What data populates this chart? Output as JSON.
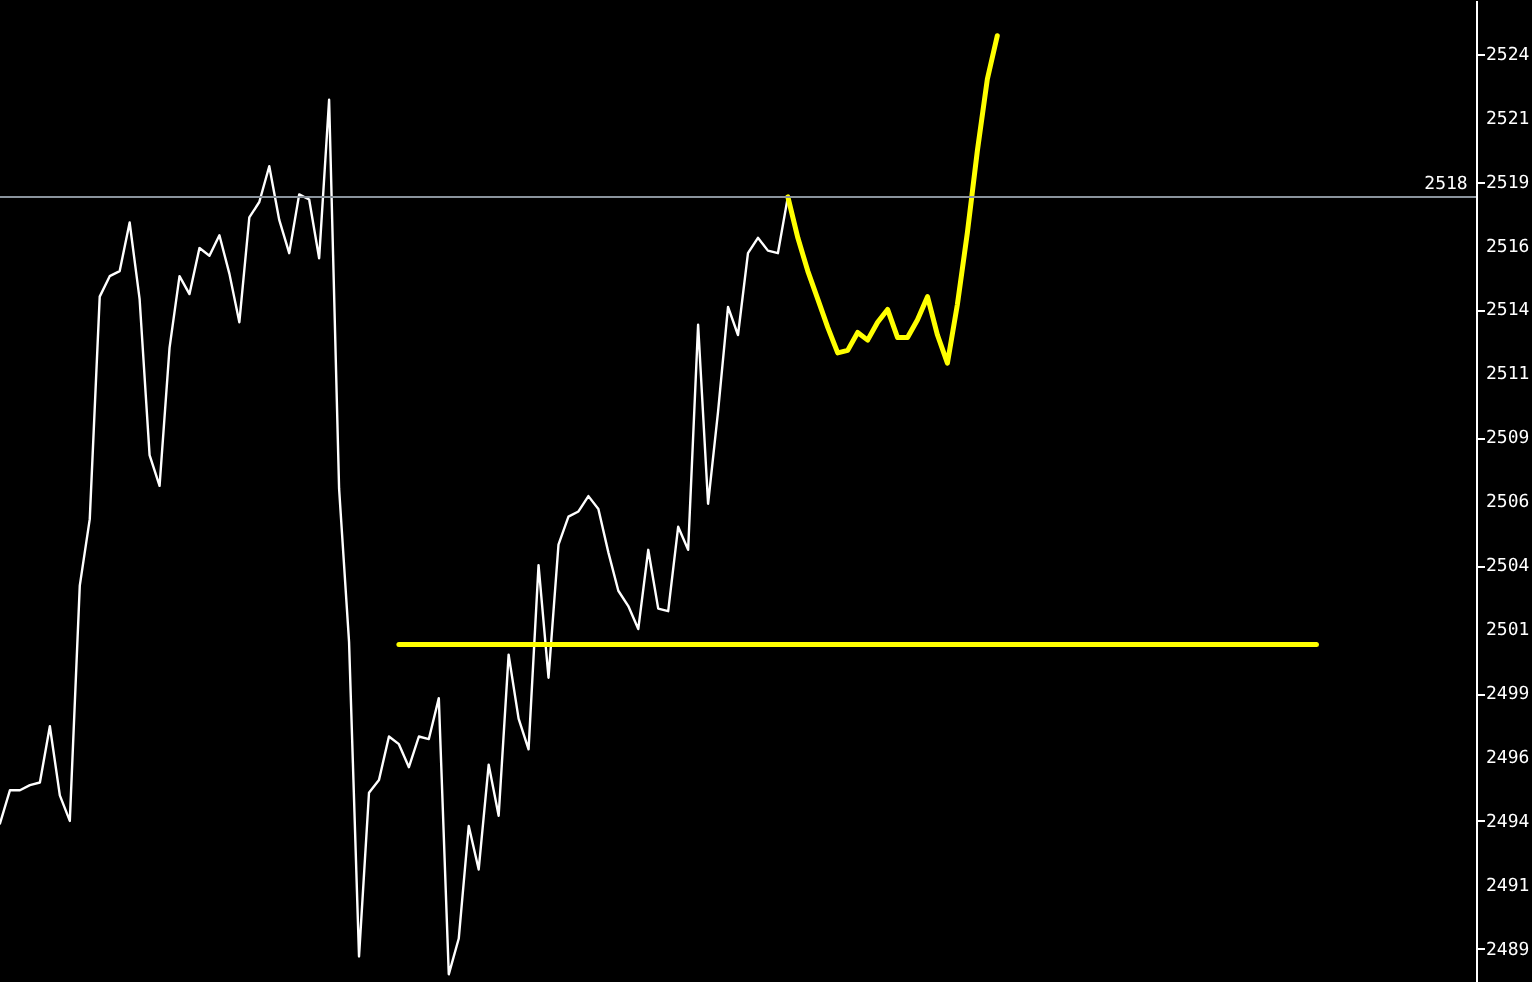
{
  "chart_data": {
    "type": "line",
    "ylim": [
      2487.7,
      2526.1
    ],
    "tick_labels": "y",
    "yticks": [
      {
        "value": 2524.0,
        "label": "2524"
      },
      {
        "value": 2521.5,
        "label": "2521"
      },
      {
        "value": 2519.0,
        "label": "2519"
      },
      {
        "value": 2516.5,
        "label": "2516"
      },
      {
        "value": 2514.0,
        "label": "2514"
      },
      {
        "value": 2511.5,
        "label": "2511"
      },
      {
        "value": 2509.0,
        "label": "2509"
      },
      {
        "value": 2506.5,
        "label": "2506"
      },
      {
        "value": 2504.0,
        "label": "2504"
      },
      {
        "value": 2501.5,
        "label": "2501"
      },
      {
        "value": 2499.0,
        "label": "2499"
      },
      {
        "value": 2496.5,
        "label": "2496"
      },
      {
        "value": 2494.0,
        "label": "2494"
      },
      {
        "value": 2491.5,
        "label": "2491"
      },
      {
        "value": 2489.0,
        "label": "2489"
      }
    ],
    "categories": [
      null,
      null,
      null,
      null,
      null,
      null,
      null,
      null,
      null,
      null,
      null,
      null,
      null,
      null,
      null,
      null,
      null,
      null,
      null,
      null,
      null,
      null,
      null,
      null,
      null,
      null,
      null,
      null,
      null,
      null,
      null,
      null,
      null,
      null,
      null,
      null,
      null,
      null,
      null,
      null,
      null,
      null,
      null,
      null,
      null,
      null,
      null,
      null,
      null,
      null,
      null,
      null,
      null,
      null,
      null,
      null,
      null,
      null,
      null,
      null,
      null,
      null,
      null,
      null,
      null,
      null,
      null,
      null,
      null,
      null,
      null,
      null,
      null,
      null,
      null,
      null,
      null,
      null,
      null,
      null,
      null,
      null,
      null,
      null,
      null,
      null,
      null,
      null,
      null,
      null,
      null,
      null,
      null,
      null,
      null,
      null,
      null,
      null,
      null,
      null,
      null,
      null,
      null,
      null,
      null,
      null,
      null,
      null,
      null,
      null,
      null,
      null,
      null,
      null,
      null,
      null,
      null,
      null,
      null,
      null,
      null,
      null,
      null,
      null,
      null,
      null,
      null,
      null,
      null,
      null,
      null,
      null,
      null,
      null,
      null,
      null,
      null,
      null,
      null,
      null,
      null,
      null,
      null,
      null,
      null,
      null,
      null,
      null,
      null
    ],
    "series": [
      {
        "color": "#ffffff",
        "values": [
          2493.9,
          2495.2,
          2495.2,
          2495.4,
          2495.5,
          2497.7,
          2495.0,
          2494.0,
          2503.2,
          2505.8,
          2514.5,
          2515.3,
          2515.5,
          2517.4,
          2514.4,
          2508.3,
          2507.1,
          2512.5,
          2515.3,
          2514.6,
          2516.4,
          2516.1,
          2516.9,
          2515.4,
          2513.5,
          2517.6,
          2518.2,
          2519.6,
          2517.5,
          2516.2,
          2518.5,
          2518.3,
          2516.0,
          2522.2,
          2507.0,
          2501.0,
          2488.7,
          2495.1,
          2495.6,
          2497.3,
          2497.0,
          2496.1,
          2497.3,
          2497.2,
          2498.8,
          2488.0,
          2489.4,
          2493.8,
          2492.1,
          2496.2,
          2494.2,
          2500.5,
          2498.0,
          2496.8,
          2504.0,
          2499.6,
          2504.8,
          2505.9,
          2506.1,
          2506.7,
          2506.2,
          2504.5,
          2503.0,
          2502.4,
          2501.5,
          2504.6,
          2502.3,
          2502.2,
          2505.5,
          2504.6,
          2513.4,
          2506.4,
          2510.0,
          2514.1,
          2513.0,
          2516.2,
          2516.8,
          2516.3,
          2516.2,
          2518.4,
          null,
          null,
          null,
          null,
          null,
          null,
          null,
          null,
          null,
          null,
          null,
          null,
          null,
          null,
          null,
          null,
          null,
          null,
          null,
          null,
          null,
          null,
          null,
          null,
          null,
          null,
          null,
          null,
          null,
          null,
          null,
          null,
          null,
          null,
          null,
          null,
          null,
          null,
          null,
          null,
          null,
          null,
          null,
          null,
          null,
          null,
          null,
          null,
          null,
          null,
          null,
          null,
          null,
          null,
          null,
          null,
          null,
          null,
          null,
          null,
          null,
          null,
          null,
          null,
          null,
          null,
          null,
          null,
          null
        ]
      },
      {
        "color": "#ffff00",
        "values": [
          null,
          null,
          null,
          null,
          null,
          null,
          null,
          null,
          null,
          null,
          null,
          null,
          null,
          null,
          null,
          null,
          null,
          null,
          null,
          null,
          null,
          null,
          null,
          null,
          null,
          null,
          null,
          null,
          null,
          null,
          null,
          null,
          null,
          null,
          null,
          null,
          null,
          null,
          null,
          null,
          null,
          null,
          null,
          null,
          null,
          null,
          null,
          null,
          null,
          null,
          null,
          null,
          null,
          null,
          null,
          null,
          null,
          null,
          null,
          null,
          null,
          null,
          null,
          null,
          null,
          null,
          null,
          null,
          null,
          null,
          null,
          null,
          null,
          null,
          null,
          null,
          null,
          null,
          null,
          2518.4,
          2516.8,
          2515.5,
          2514.4,
          2513.3,
          2512.3,
          2512.4,
          2513.1,
          2512.8,
          2513.5,
          2514.0,
          2512.9,
          2512.9,
          2513.6,
          2514.5,
          2513.0,
          2511.9,
          2514.2,
          2517.0,
          2520.2,
          2523.0,
          2524.7,
          null,
          null,
          null,
          null,
          null,
          null,
          null,
          null,
          null,
          null,
          null,
          null,
          null,
          null,
          null,
          null,
          null,
          null,
          null,
          null,
          null,
          null,
          null,
          null,
          null,
          null,
          null,
          null,
          null,
          null,
          null,
          null,
          null,
          null,
          null,
          null,
          null,
          null,
          null,
          null,
          null,
          null,
          null,
          null,
          null,
          null,
          null,
          null
        ]
      },
      {
        "color": "#ffff00",
        "values": [
          null,
          null,
          null,
          null,
          null,
          null,
          null,
          null,
          null,
          null,
          null,
          null,
          null,
          null,
          null,
          null,
          null,
          null,
          null,
          null,
          null,
          null,
          null,
          null,
          null,
          null,
          null,
          null,
          null,
          null,
          null,
          null,
          null,
          null,
          null,
          null,
          null,
          null,
          null,
          null,
          2500.9,
          2500.9,
          2500.9,
          2500.9,
          2500.9,
          2500.9,
          2500.9,
          2500.9,
          2500.9,
          2500.9,
          2500.9,
          2500.9,
          2500.9,
          2500.9,
          2500.9,
          2500.9,
          2500.9,
          2500.9,
          2500.9,
          2500.9,
          2500.9,
          2500.9,
          2500.9,
          2500.9,
          2500.9,
          2500.9,
          2500.9,
          2500.9,
          2500.9,
          2500.9,
          2500.9,
          2500.9,
          2500.9,
          2500.9,
          2500.9,
          2500.9,
          2500.9,
          2500.9,
          2500.9,
          2500.9,
          2500.9,
          2500.9,
          2500.9,
          2500.9,
          2500.9,
          2500.9,
          2500.9,
          2500.9,
          2500.9,
          2500.9,
          2500.9,
          2500.9,
          2500.9,
          2500.9,
          2500.9,
          2500.9,
          2500.9,
          2500.9,
          2500.9,
          2500.9,
          2500.9,
          2500.9,
          2500.9,
          2500.9,
          2500.9,
          2500.9,
          2500.9,
          2500.9,
          2500.9,
          2500.9,
          2500.9,
          2500.9,
          2500.9,
          2500.9,
          2500.9,
          2500.9,
          2500.9,
          2500.9,
          2500.9,
          2500.9,
          2500.9,
          2500.9,
          2500.9,
          2500.9,
          2500.9,
          2500.9,
          2500.9,
          2500.9,
          2500.9,
          2500.9,
          2500.9,
          2500.9,
          2500.9,
          null,
          null,
          null,
          null,
          null,
          null,
          null,
          null,
          null,
          null,
          null,
          null,
          null,
          null,
          null,
          null
        ]
      }
    ],
    "ref_lines": [
      {
        "axis": "y",
        "value": 2518.4,
        "label": "2518",
        "color": "#8a939c"
      }
    ]
  }
}
